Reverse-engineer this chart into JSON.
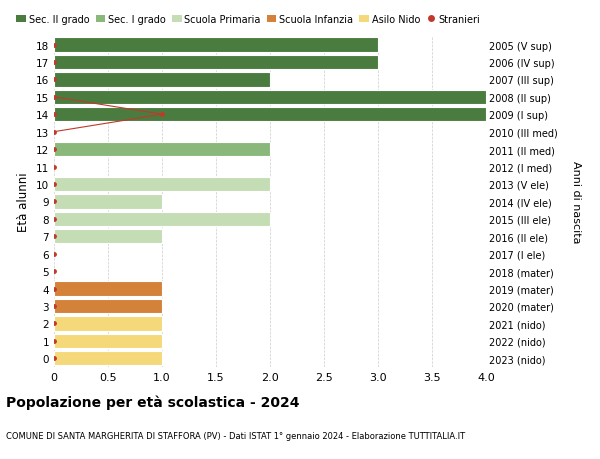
{
  "ages": [
    18,
    17,
    16,
    15,
    14,
    13,
    12,
    11,
    10,
    9,
    8,
    7,
    6,
    5,
    4,
    3,
    2,
    1,
    0
  ],
  "right_labels": [
    "2005 (V sup)",
    "2006 (IV sup)",
    "2007 (III sup)",
    "2008 (II sup)",
    "2009 (I sup)",
    "2010 (III med)",
    "2011 (II med)",
    "2012 (I med)",
    "2013 (V ele)",
    "2014 (IV ele)",
    "2015 (III ele)",
    "2016 (II ele)",
    "2017 (I ele)",
    "2018 (mater)",
    "2019 (mater)",
    "2020 (mater)",
    "2021 (nido)",
    "2022 (nido)",
    "2023 (nido)"
  ],
  "bar_values": [
    3,
    3,
    2,
    4,
    4,
    0,
    2,
    0,
    2,
    1,
    2,
    1,
    0,
    0,
    1,
    1,
    1,
    1,
    1
  ],
  "bar_colors": [
    "#4a7c3f",
    "#4a7c3f",
    "#4a7c3f",
    "#4a7c3f",
    "#4a7c3f",
    "#4a7c3f",
    "#8ab87a",
    "#8ab87a",
    "#c5ddb5",
    "#c5ddb5",
    "#c5ddb5",
    "#c5ddb5",
    "#c5ddb5",
    "#c5ddb5",
    "#d4813a",
    "#d4813a",
    "#f5d87a",
    "#f5d87a",
    "#f5d87a"
  ],
  "stranieri_line_x": [
    0,
    1,
    0
  ],
  "stranieri_line_ages": [
    15,
    14,
    13
  ],
  "xlim": [
    0,
    4.0
  ],
  "ylim": [
    -0.5,
    18.5
  ],
  "xlabel_ticks": [
    0,
    0.5,
    1.0,
    1.5,
    2.0,
    2.5,
    3.0,
    3.5,
    4.0
  ],
  "xlabel_tick_labels": [
    "0",
    "0.5",
    "1.0",
    "1.5",
    "2.0",
    "2.5",
    "3.0",
    "3.5",
    "4.0"
  ],
  "ylabel": "Età alunni",
  "right_ylabel": "Anni di nascita",
  "title": "Popolazione per età scolastica - 2024",
  "subtitle": "COMUNE DI SANTA MARGHERITA DI STAFFORA (PV) - Dati ISTAT 1° gennaio 2024 - Elaborazione TUTTITALIA.IT",
  "legend_labels": [
    "Sec. II grado",
    "Sec. I grado",
    "Scuola Primaria",
    "Scuola Infanzia",
    "Asilo Nido",
    "Stranieri"
  ],
  "legend_colors": [
    "#4a7c3f",
    "#8ab87a",
    "#c5ddb5",
    "#d4813a",
    "#f5d87a",
    "#c0392b"
  ],
  "stranieri_color": "#c0392b",
  "bg_color": "#ffffff",
  "bar_height": 0.82
}
